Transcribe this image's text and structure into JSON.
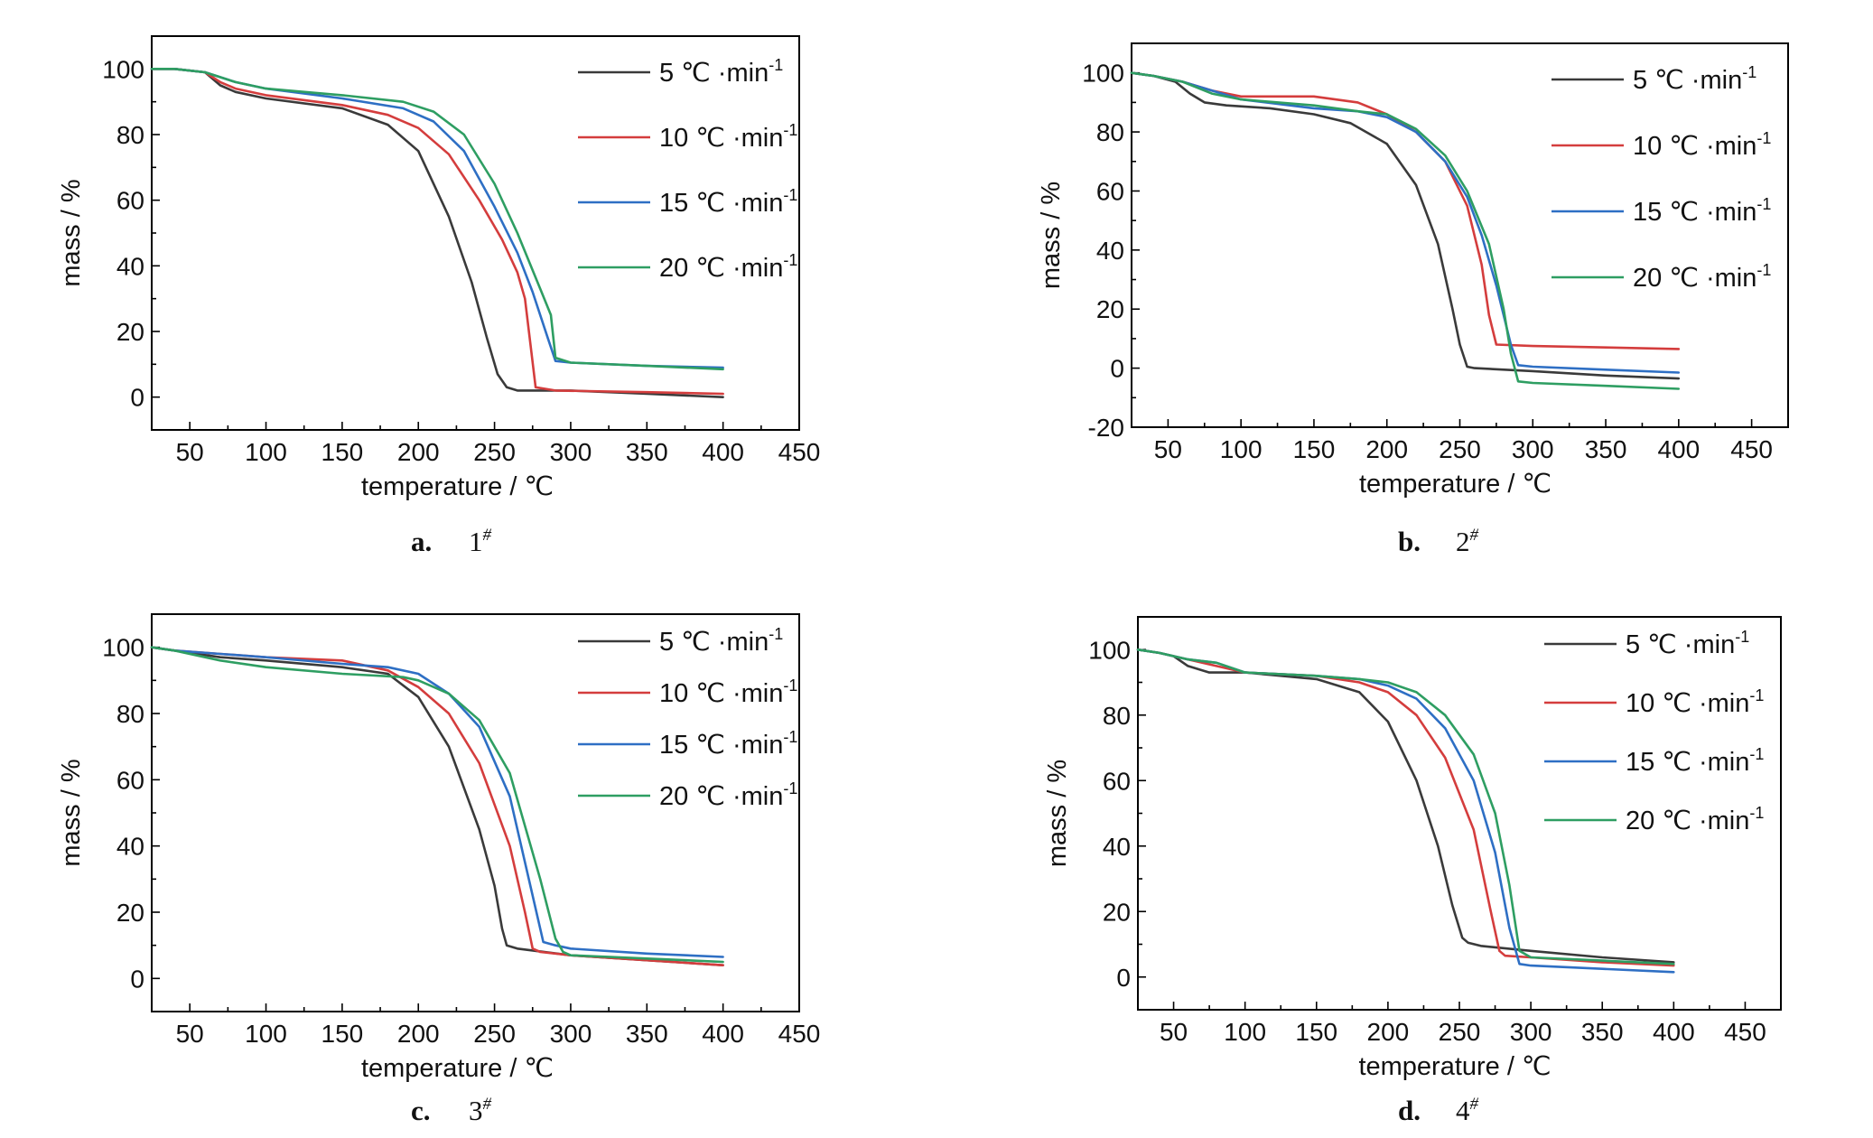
{
  "colors": {
    "5 ℃·min-1": "#3a3a3a",
    "10 ℃·min-1": "#d43d3d",
    "15 ℃·min-1": "#2e6fc4",
    "20 ℃·min-1": "#2e9e62"
  },
  "legend_labels": [
    {
      "main": "5 ℃ ·min",
      "sup": "-1"
    },
    {
      "main": "10 ℃ ·min",
      "sup": "-1"
    },
    {
      "main": "15 ℃ ·min",
      "sup": "-1"
    },
    {
      "main": "20 ℃ ·min",
      "sup": "-1"
    }
  ],
  "chart_data": [
    {
      "type": "line",
      "caption_letter": "a.",
      "caption_number": "1",
      "caption_sup": "#",
      "xlabel": "temperature / ℃",
      "ylabel": "mass / %",
      "xlim": [
        25,
        450
      ],
      "ylim": [
        -10,
        110
      ],
      "xticks": [
        50,
        100,
        150,
        200,
        250,
        300,
        350,
        400,
        450
      ],
      "yticks": [
        0,
        20,
        40,
        60,
        80,
        100
      ],
      "legend_position": "top-right",
      "series": [
        {
          "name": "5 ℃·min-1",
          "x": [
            25,
            40,
            60,
            70,
            80,
            100,
            150,
            180,
            200,
            220,
            235,
            245,
            252,
            258,
            265,
            300,
            350,
            400
          ],
          "y": [
            100,
            100,
            99,
            95,
            93,
            91,
            88,
            83,
            75,
            55,
            35,
            18,
            7,
            3,
            2,
            2,
            1,
            0
          ]
        },
        {
          "name": "10 ℃·min-1",
          "x": [
            25,
            40,
            60,
            70,
            80,
            100,
            150,
            180,
            200,
            220,
            240,
            255,
            265,
            270,
            277,
            290,
            350,
            400
          ],
          "y": [
            100,
            100,
            99,
            96,
            94,
            92,
            89,
            86,
            82,
            74,
            60,
            48,
            38,
            30,
            3,
            2,
            1.5,
            1
          ]
        },
        {
          "name": "15 ℃·min-1",
          "x": [
            25,
            40,
            60,
            80,
            100,
            150,
            190,
            210,
            230,
            250,
            265,
            275,
            285,
            290,
            300,
            350,
            400
          ],
          "y": [
            100,
            100,
            99,
            96,
            94,
            91,
            88,
            84,
            75,
            58,
            44,
            32,
            18,
            11,
            10.5,
            9.5,
            9
          ]
        },
        {
          "name": "20 ℃·min-1",
          "x": [
            25,
            40,
            60,
            80,
            100,
            150,
            190,
            210,
            230,
            250,
            265,
            280,
            287,
            290,
            300,
            350,
            400
          ],
          "y": [
            100,
            100,
            99,
            96,
            94,
            92,
            90,
            87,
            80,
            65,
            50,
            33,
            25,
            12,
            10.5,
            9.5,
            8.5
          ]
        }
      ]
    },
    {
      "type": "line",
      "caption_letter": "b.",
      "caption_number": "2",
      "caption_sup": "#",
      "xlabel": "temperature / ℃",
      "ylabel": "mass / %",
      "xlim": [
        25,
        475
      ],
      "ylim": [
        -20,
        110
      ],
      "xticks": [
        50,
        100,
        150,
        200,
        250,
        300,
        350,
        400,
        450
      ],
      "yticks": [
        -20,
        0,
        20,
        40,
        60,
        80,
        100
      ],
      "legend_position": "top-right",
      "series": [
        {
          "name": "5 ℃·min-1",
          "x": [
            25,
            40,
            55,
            65,
            75,
            90,
            120,
            150,
            175,
            200,
            220,
            235,
            245,
            250,
            255,
            260,
            300,
            350,
            400
          ],
          "y": [
            100,
            99,
            97,
            93,
            90,
            89,
            88,
            86,
            83,
            76,
            62,
            42,
            20,
            8,
            0.5,
            0,
            -1,
            -2.5,
            -3.5
          ]
        },
        {
          "name": "10 ℃·min-1",
          "x": [
            25,
            40,
            60,
            80,
            100,
            150,
            180,
            200,
            220,
            240,
            255,
            265,
            270,
            275,
            300,
            350,
            400
          ],
          "y": [
            100,
            99,
            97,
            94,
            92,
            92,
            90,
            86,
            80,
            70,
            55,
            35,
            18,
            8,
            7.5,
            7,
            6.5
          ]
        },
        {
          "name": "15 ℃·min-1",
          "x": [
            25,
            40,
            60,
            80,
            100,
            150,
            180,
            200,
            220,
            240,
            255,
            265,
            275,
            285,
            290,
            300,
            350,
            400
          ],
          "y": [
            100,
            99,
            97,
            94,
            91,
            88,
            87,
            85,
            80,
            70,
            58,
            45,
            28,
            8,
            1,
            0.5,
            -0.5,
            -1.5
          ]
        },
        {
          "name": "20 ℃·min-1",
          "x": [
            25,
            40,
            60,
            80,
            100,
            150,
            180,
            200,
            220,
            240,
            255,
            270,
            280,
            285,
            290,
            300,
            350,
            400
          ],
          "y": [
            100,
            99,
            97,
            93,
            91,
            89,
            87,
            86,
            81,
            72,
            60,
            42,
            20,
            5,
            -4.5,
            -5,
            -6,
            -7
          ]
        }
      ]
    },
    {
      "type": "line",
      "caption_letter": "c.",
      "caption_number": "3",
      "caption_sup": "#",
      "xlabel": "temperature / ℃",
      "ylabel": "mass / %",
      "xlim": [
        25,
        450
      ],
      "ylim": [
        -10,
        110
      ],
      "xticks": [
        50,
        100,
        150,
        200,
        250,
        300,
        350,
        400,
        450
      ],
      "yticks": [
        0,
        20,
        40,
        60,
        80,
        100
      ],
      "legend_position": "top-right",
      "series": [
        {
          "name": "5 ℃·min-1",
          "x": [
            25,
            40,
            70,
            100,
            150,
            180,
            200,
            220,
            240,
            250,
            255,
            258,
            265,
            300,
            350,
            400
          ],
          "y": [
            100,
            99,
            97,
            96,
            94,
            92,
            85,
            70,
            45,
            28,
            15,
            10,
            9,
            7,
            5.5,
            4
          ]
        },
        {
          "name": "10 ℃·min-1",
          "x": [
            25,
            40,
            70,
            100,
            150,
            180,
            200,
            220,
            240,
            260,
            270,
            275,
            280,
            300,
            350,
            400
          ],
          "y": [
            100,
            99,
            98,
            97,
            96,
            93,
            88,
            80,
            65,
            40,
            20,
            9,
            8,
            7,
            5.5,
            4
          ]
        },
        {
          "name": "15 ℃·min-1",
          "x": [
            25,
            40,
            70,
            100,
            150,
            180,
            200,
            220,
            240,
            260,
            275,
            282,
            290,
            300,
            350,
            400
          ],
          "y": [
            100,
            99,
            98,
            97,
            95,
            94,
            92,
            86,
            76,
            55,
            25,
            11,
            10,
            9,
            7.5,
            6.5
          ]
        },
        {
          "name": "20 ℃·min-1",
          "x": [
            25,
            40,
            70,
            100,
            150,
            190,
            200,
            220,
            240,
            260,
            280,
            290,
            295,
            300,
            350,
            400
          ],
          "y": [
            100,
            99,
            96,
            94,
            92,
            91,
            90,
            86,
            78,
            62,
            30,
            12,
            8,
            7,
            6,
            5
          ]
        }
      ]
    },
    {
      "type": "line",
      "caption_letter": "d.",
      "caption_number": "4",
      "caption_sup": "#",
      "xlabel": "temperature / ℃",
      "ylabel": "mass / %",
      "xlim": [
        25,
        475
      ],
      "ylim": [
        -10,
        110
      ],
      "xticks": [
        50,
        100,
        150,
        200,
        250,
        300,
        350,
        400,
        450
      ],
      "yticks": [
        0,
        20,
        40,
        60,
        80,
        100
      ],
      "legend_position": "top-right",
      "series": [
        {
          "name": "5 ℃·min-1",
          "x": [
            25,
            40,
            50,
            60,
            75,
            100,
            150,
            180,
            200,
            220,
            235,
            245,
            252,
            256,
            265,
            300,
            350,
            400
          ],
          "y": [
            100,
            99,
            98,
            95,
            93,
            93,
            91,
            87,
            78,
            60,
            40,
            22,
            12,
            10.5,
            9.5,
            8,
            6,
            4.5
          ]
        },
        {
          "name": "10 ℃·min-1",
          "x": [
            25,
            40,
            60,
            80,
            100,
            150,
            180,
            200,
            220,
            240,
            260,
            272,
            278,
            282,
            300,
            350,
            400
          ],
          "y": [
            100,
            99,
            97,
            95,
            93,
            92,
            90,
            87,
            80,
            67,
            45,
            20,
            8,
            6.5,
            6,
            4.5,
            3.5
          ]
        },
        {
          "name": "15 ℃·min-1",
          "x": [
            25,
            40,
            60,
            80,
            100,
            150,
            180,
            200,
            220,
            240,
            260,
            275,
            285,
            292,
            300,
            350,
            400
          ],
          "y": [
            100,
            99,
            97,
            96,
            93,
            92,
            91,
            89,
            85,
            76,
            60,
            38,
            15,
            4,
            3.5,
            2.5,
            1.5
          ]
        },
        {
          "name": "20 ℃·min-1",
          "x": [
            25,
            40,
            60,
            80,
            100,
            150,
            180,
            200,
            220,
            240,
            260,
            275,
            285,
            292,
            300,
            350,
            400
          ],
          "y": [
            100,
            99,
            97,
            96,
            93,
            92,
            91,
            90,
            87,
            80,
            68,
            50,
            28,
            8,
            6,
            5,
            4
          ]
        }
      ]
    }
  ]
}
